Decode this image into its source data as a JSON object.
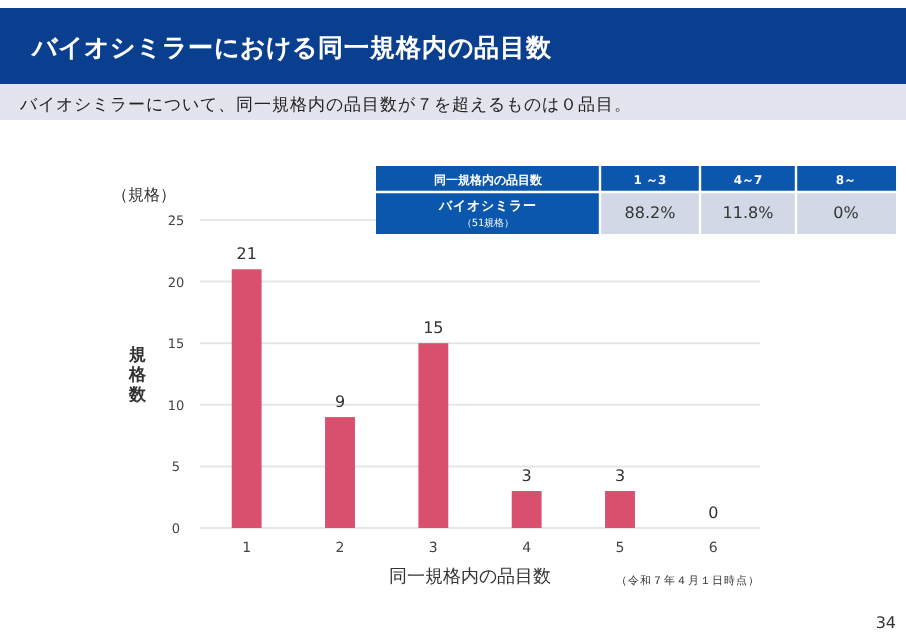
{
  "chart_data": {
    "type": "bar",
    "title": "バイオシミラーにおける同一規格内の品目数",
    "subtitle": "バイオシミラーについて、同一規格内の品目数が７を超えるものは０品目。",
    "xlabel": "同一規格内の品目数",
    "ylabel": "規格数",
    "categories": [
      "1",
      "2",
      "3",
      "4",
      "5",
      "6"
    ],
    "values": [
      21,
      9,
      15,
      3,
      3,
      0
    ],
    "color": "#d94f6e",
    "ylim": [
      0,
      25
    ],
    "yticks": [
      0,
      5,
      10,
      15,
      20,
      25
    ],
    "grid": "y",
    "data_labels": true,
    "annotations": [
      "（規格）",
      "同一規格内の品目数",
      "1 ～3",
      "4～7",
      "8～",
      "バイオシミラー",
      "（51規格）",
      "88.2%",
      "11.8%",
      "0%",
      "（令和７年４月１日時点）",
      "34"
    ]
  }
}
